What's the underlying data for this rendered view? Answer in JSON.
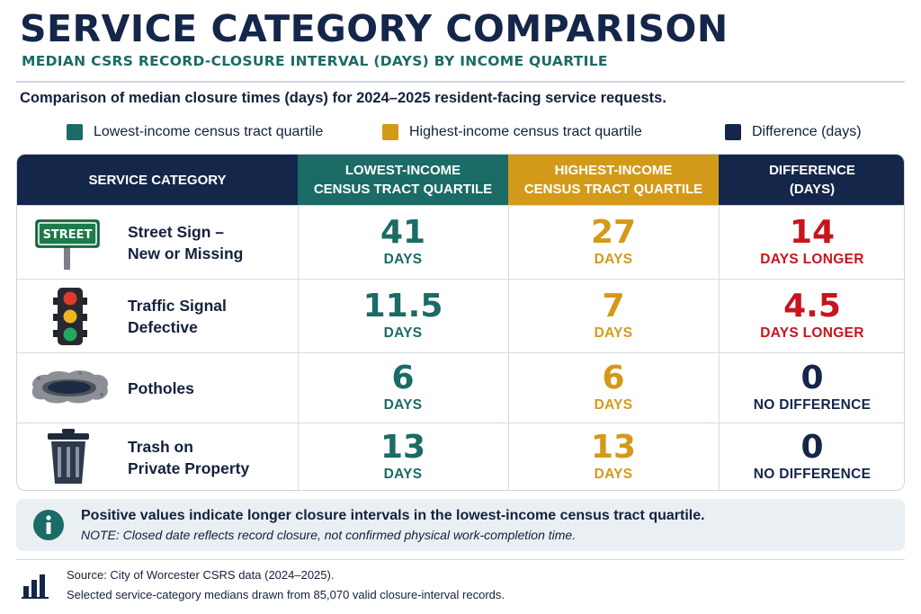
{
  "header": {
    "title": "SERVICE CATEGORY COMPARISON",
    "subtitle": "MEDIAN CSRS RECORD-CLOSURE INTERVAL (DAYS) BY INCOME QUARTILE",
    "description": "Comparison of median closure times (days) for 2024–2025 resident-facing service requests."
  },
  "legend": [
    {
      "label": "Lowest-income census tract quartile",
      "color": "#1b6b66"
    },
    {
      "label": "Highest-income census tract quartile",
      "color": "#d39a1a"
    },
    {
      "label": "Difference (days)",
      "color": "#142649"
    }
  ],
  "table": {
    "headers": {
      "category": "SERVICE CATEGORY",
      "lowest_line1": "LOWEST-INCOME",
      "lowest_line2": "CENSUS TRACT QUARTILE",
      "highest_line1": "HIGHEST-INCOME",
      "highest_line2": "CENSUS TRACT QUARTILE",
      "diff_line1": "DIFFERENCE",
      "diff_line2": "(DAYS)"
    },
    "colors": {
      "header_dark": "#142649",
      "lowest": "#1b6b66",
      "highest": "#d39a1a",
      "diff_positive": "#c8141c",
      "diff_zero": "#142649"
    }
  },
  "chart_data": {
    "type": "table",
    "columns": [
      "Lowest-income census tract quartile",
      "Highest-income census tract quartile",
      "Difference (days)"
    ],
    "rows": [
      {
        "icon": "street-sign-icon",
        "sign_text": "STREET",
        "line1": "Street Sign –",
        "line2": "New or Missing",
        "lowest": "41",
        "lowest_unit": "DAYS",
        "highest": "27",
        "highest_unit": "DAYS",
        "diff": "14",
        "diff_unit": "DAYS LONGER"
      },
      {
        "icon": "traffic-light-icon",
        "line1": "Traffic Signal",
        "line2": "Defective",
        "lowest": "11.5",
        "lowest_unit": "DAYS",
        "highest": "7",
        "highest_unit": "DAYS",
        "diff": "4.5",
        "diff_unit": "DAYS LONGER"
      },
      {
        "icon": "pothole-icon",
        "line1": "Potholes",
        "line2": "",
        "lowest": "6",
        "lowest_unit": "DAYS",
        "highest": "6",
        "highest_unit": "DAYS",
        "diff": "0",
        "diff_unit": "NO DIFFERENCE"
      },
      {
        "icon": "trash-can-icon",
        "line1": "Trash on",
        "line2": "Private Property",
        "lowest": "13",
        "lowest_unit": "DAYS",
        "highest": "13",
        "highest_unit": "DAYS",
        "diff": "0",
        "diff_unit": "NO DIFFERENCE"
      }
    ]
  },
  "note": {
    "main": "Positive values indicate longer closure intervals in the lowest-income census tract quartile.",
    "sub": "NOTE: Closed date reflects record closure, not confirmed physical work-completion time."
  },
  "source": {
    "line1": "Source: City of Worcester CSRS data (2024–2025).",
    "line2": "Selected service-category medians drawn from 85,070 valid closure-interval records."
  }
}
